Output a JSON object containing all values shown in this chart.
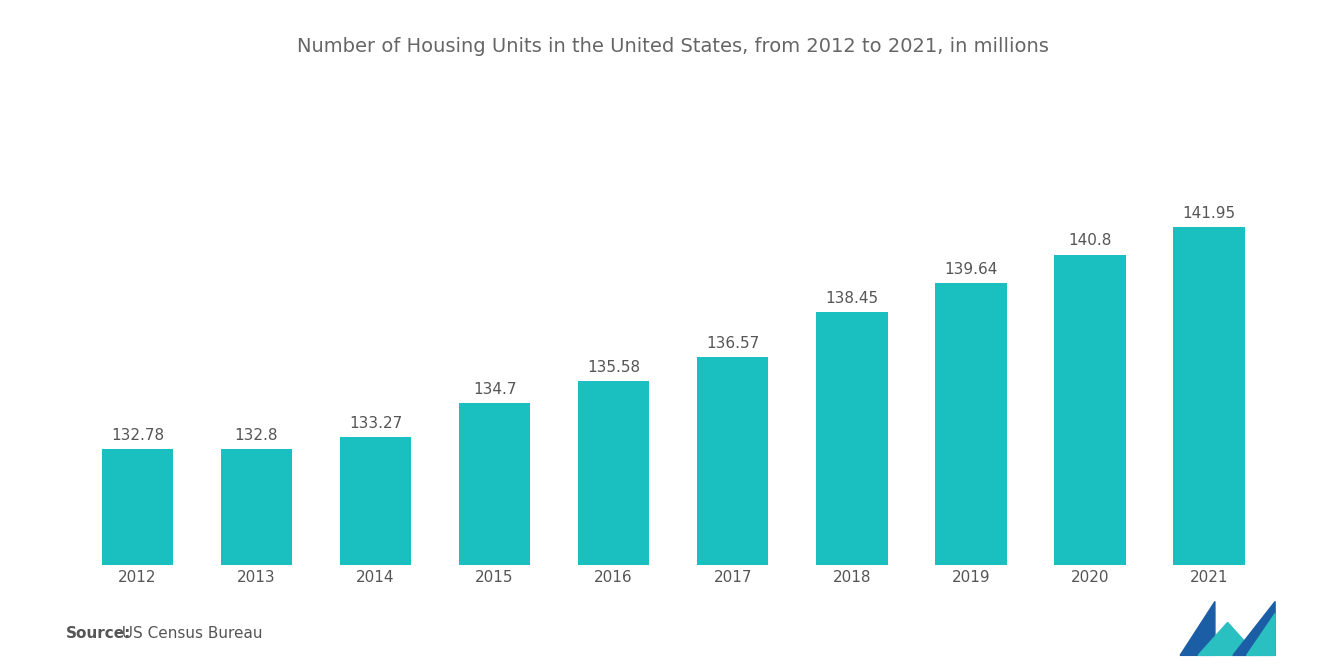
{
  "title": "Number of Housing Units in the United States, from 2012 to 2021, in millions",
  "years": [
    2012,
    2013,
    2014,
    2015,
    2016,
    2017,
    2018,
    2019,
    2020,
    2021
  ],
  "values": [
    132.78,
    132.8,
    133.27,
    134.7,
    135.58,
    136.57,
    138.45,
    139.64,
    140.8,
    141.95
  ],
  "bar_color": "#1ABFBF",
  "background_color": "#FFFFFF",
  "title_color": "#666666",
  "label_color": "#555555",
  "title_fontsize": 14,
  "label_fontsize": 11,
  "tick_fontsize": 11,
  "source_label_bold": "Source:",
  "source_label_rest": "  US Census Bureau",
  "source_fontsize": 11,
  "ylim_min": 128,
  "ylim_max": 148
}
